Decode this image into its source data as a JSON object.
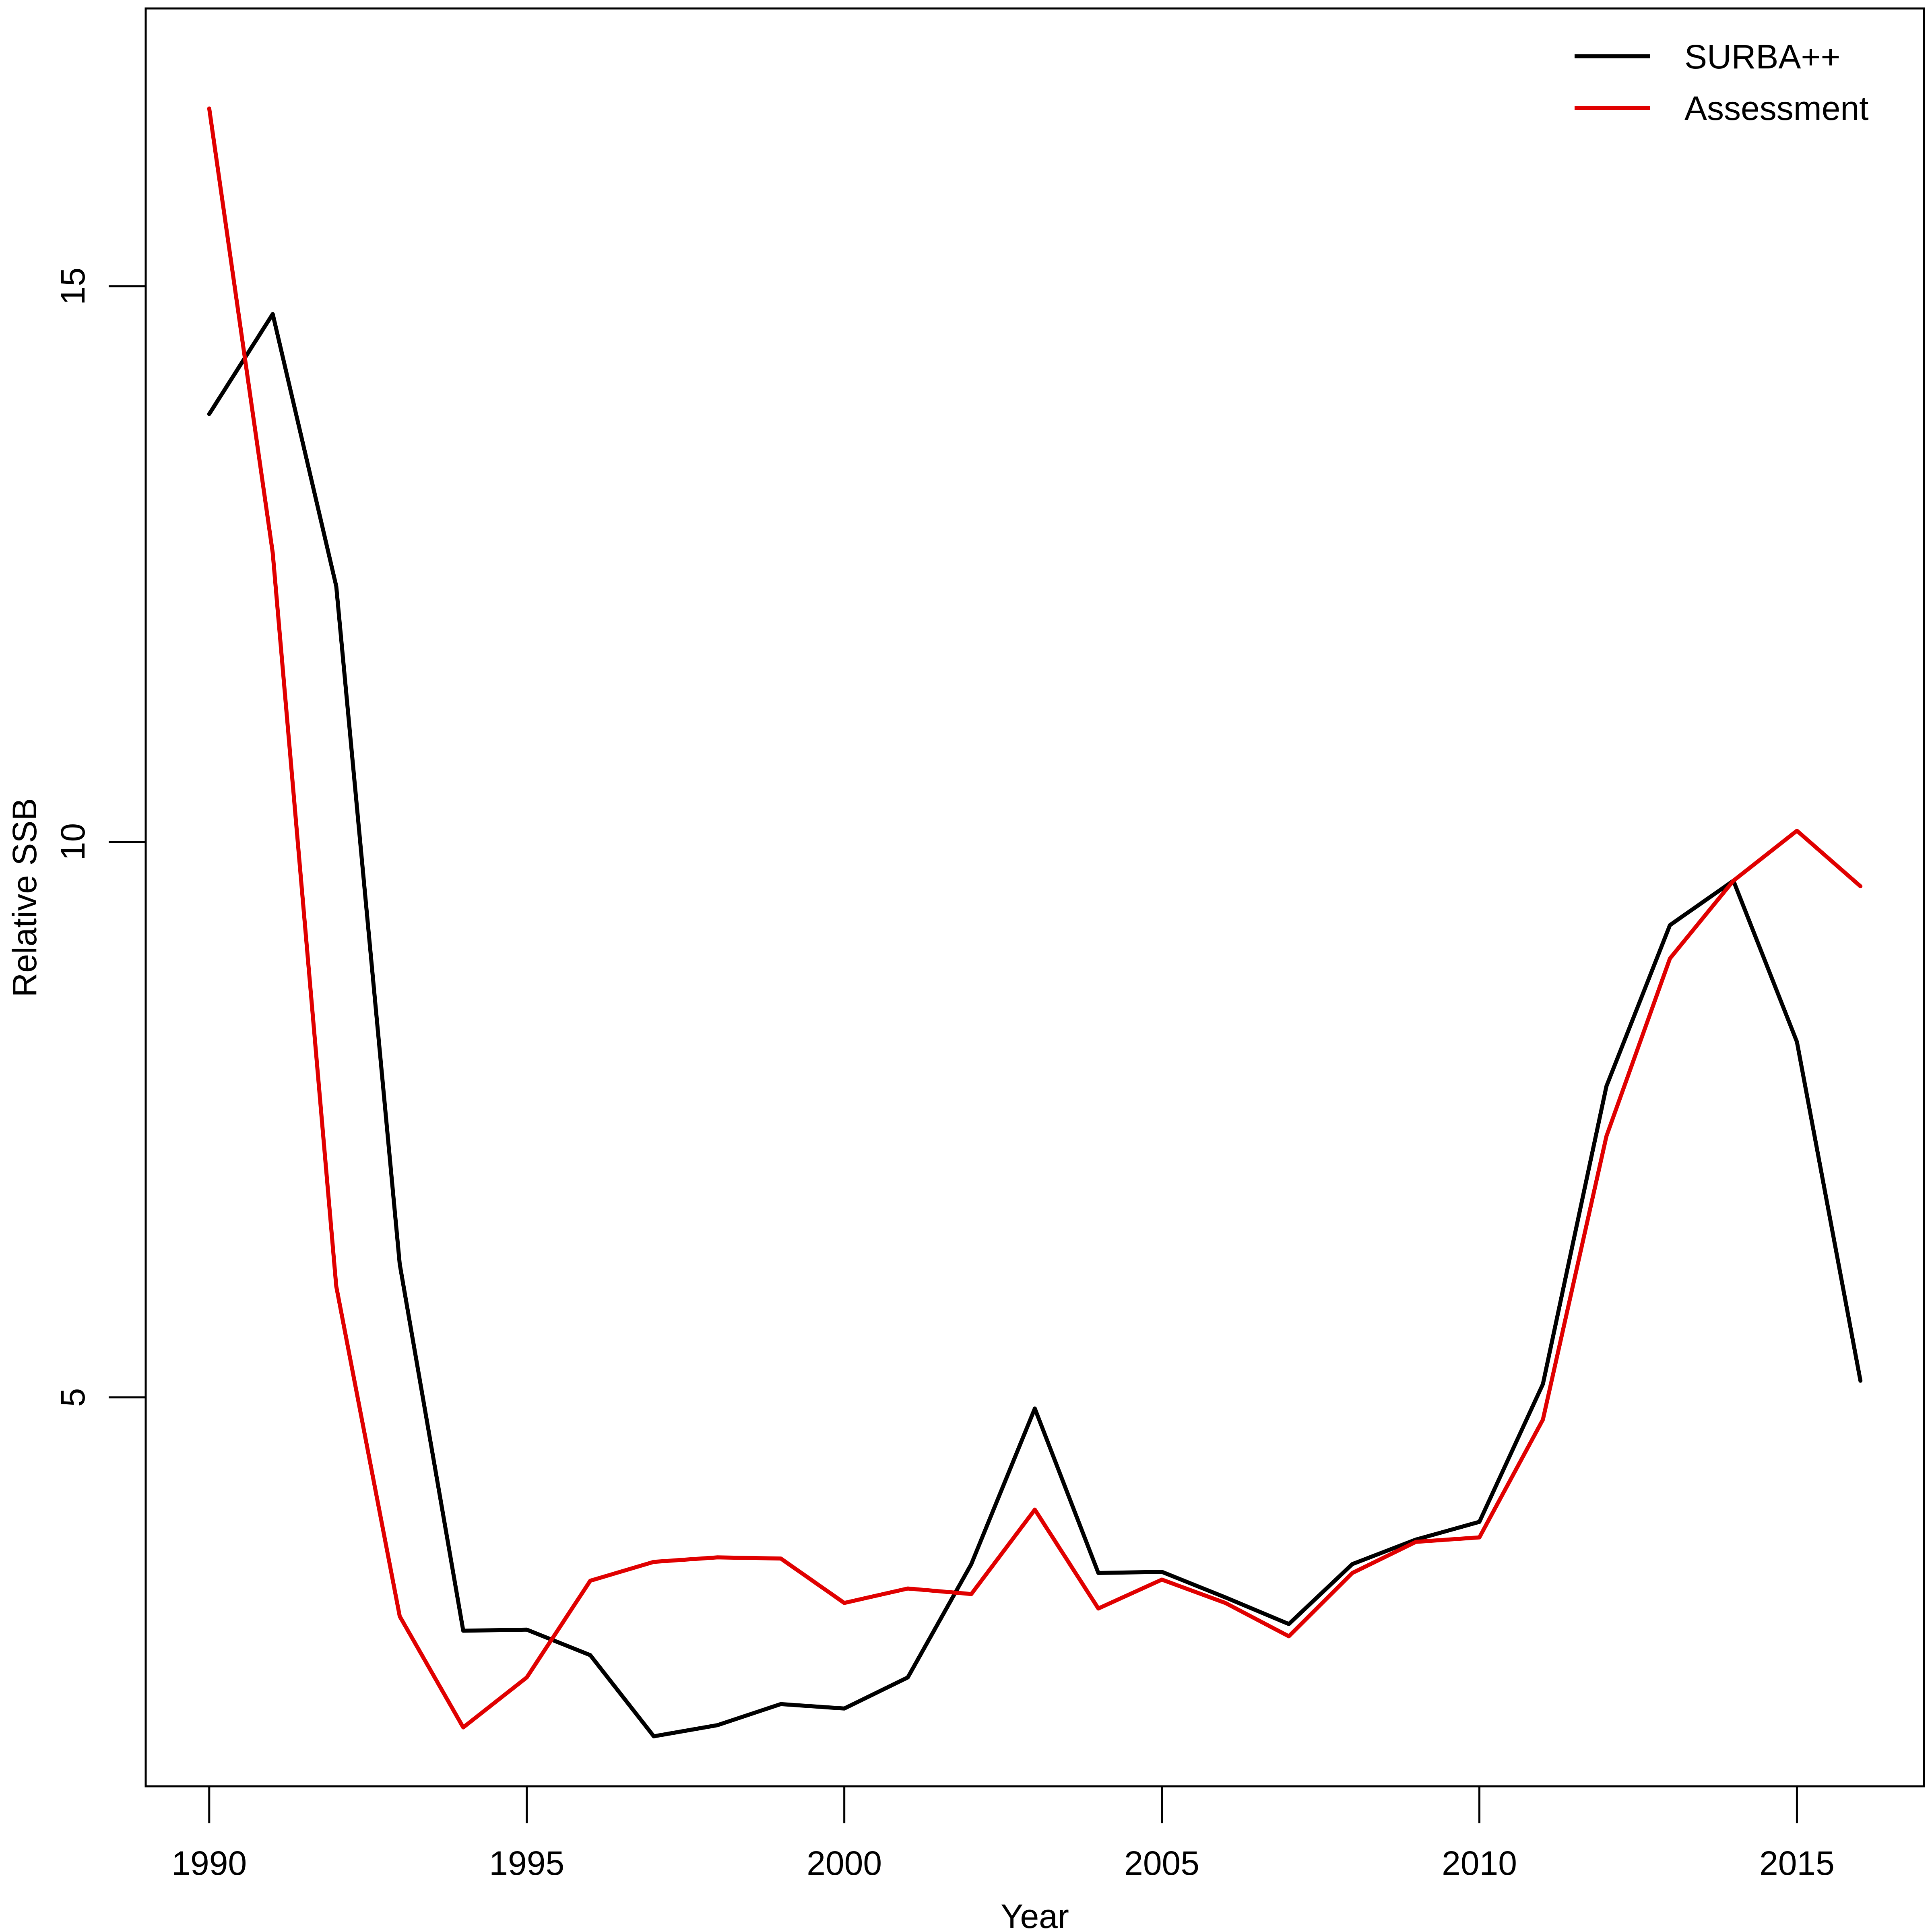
{
  "chart_data": {
    "type": "line",
    "title": "",
    "xlabel": "Year",
    "ylabel": "Relative SSB",
    "xlim": [
      1989,
      2017
    ],
    "ylim": [
      1.5,
      17.5
    ],
    "xticks": [
      1990,
      1995,
      2000,
      2005,
      2010,
      2015
    ],
    "yticks": [
      5,
      10,
      15
    ],
    "grid": false,
    "legend": "top-right",
    "x": [
      1990,
      1991,
      1992,
      1993,
      1994,
      1995,
      1996,
      1997,
      1998,
      1999,
      2000,
      2001,
      2002,
      2003,
      2004,
      2005,
      2006,
      2007,
      2008,
      2009,
      2010,
      2011,
      2012,
      2013,
      2014,
      2015,
      2016
    ],
    "series": [
      {
        "name": "SURBA++",
        "color": "#000000",
        "values": [
          13.85,
          14.75,
          12.3,
          6.2,
          2.9,
          2.91,
          2.68,
          1.95,
          2.05,
          2.24,
          2.2,
          2.48,
          3.5,
          4.9,
          3.42,
          3.43,
          3.2,
          2.96,
          3.5,
          3.72,
          3.88,
          5.12,
          7.8,
          9.25,
          9.65,
          8.2,
          5.15
        ]
      },
      {
        "name": "Assessment",
        "color": "#e00000",
        "values": [
          16.6,
          12.6,
          6.0,
          3.03,
          2.03,
          2.48,
          3.35,
          3.52,
          3.56,
          3.55,
          3.15,
          3.28,
          3.23,
          3.99,
          3.1,
          3.36,
          3.15,
          2.85,
          3.42,
          3.7,
          3.74,
          4.8,
          7.35,
          8.95,
          9.65,
          10.1,
          9.6
        ]
      }
    ]
  }
}
